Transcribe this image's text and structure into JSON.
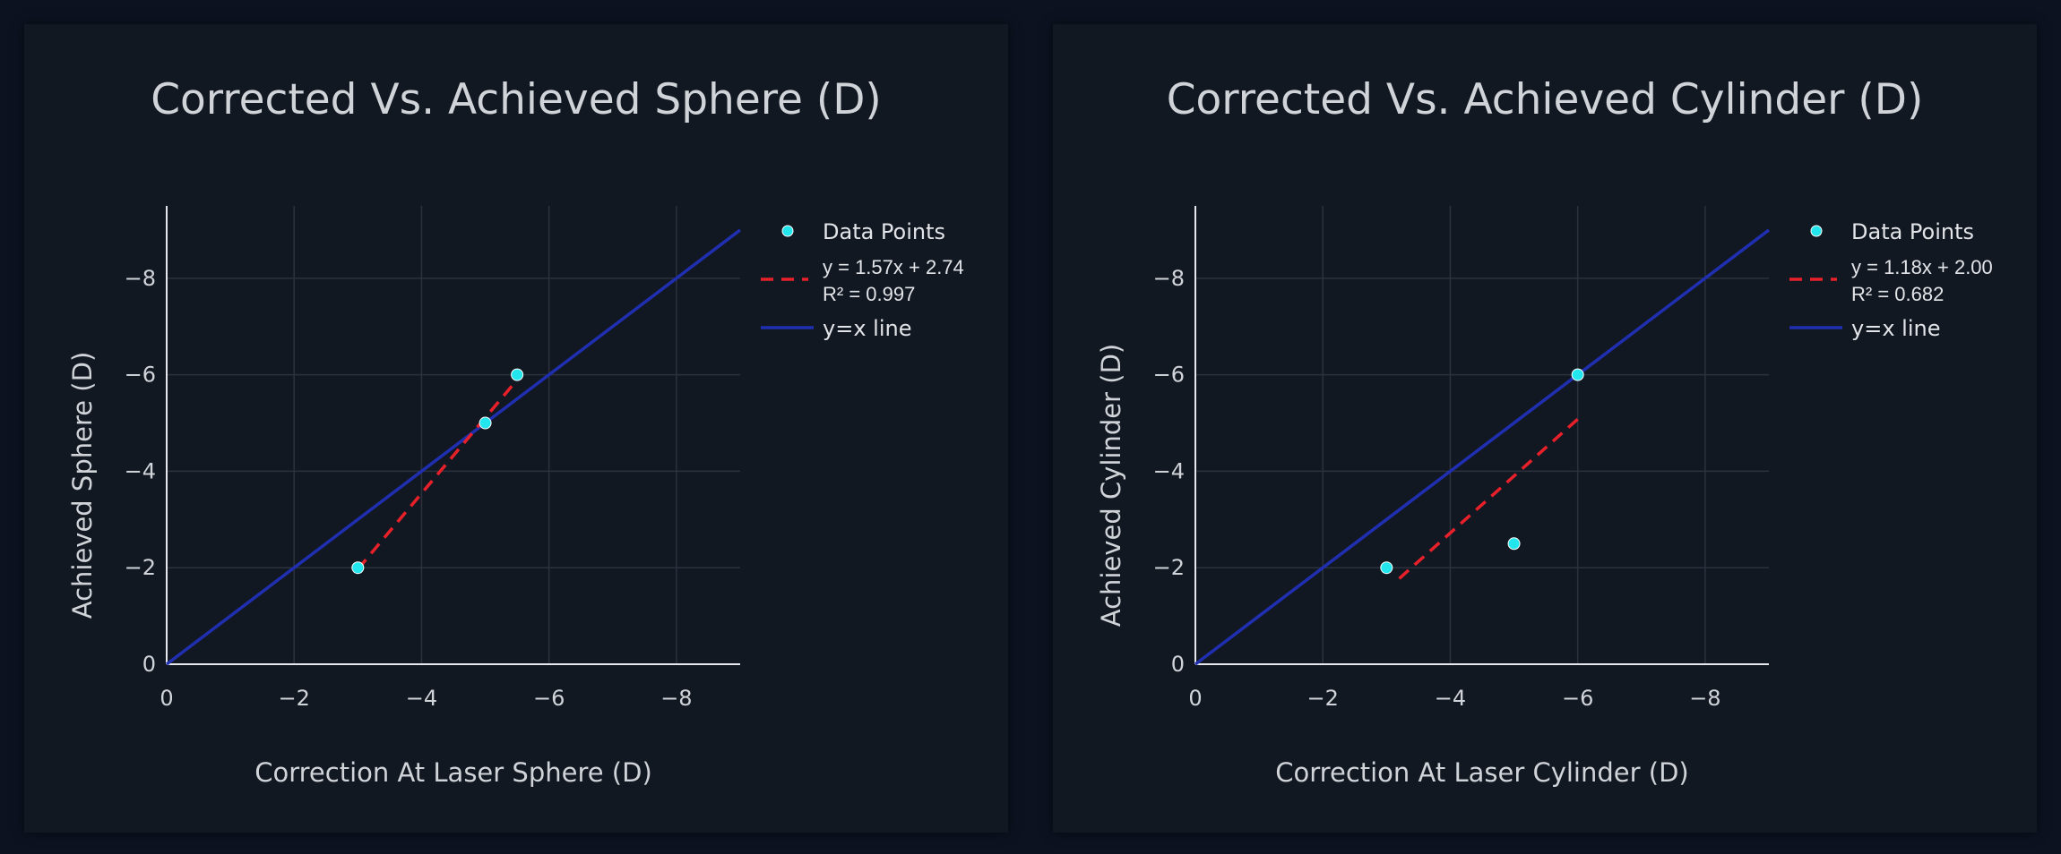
{
  "chart_data": [
    {
      "type": "scatter",
      "title": "Corrected Vs. Achieved Sphere (D)",
      "xlabel": "Correction At Laser Sphere (D)",
      "ylabel": "Achieved Sphere (D)",
      "xlim": [
        0,
        -9
      ],
      "ylim": [
        0,
        -9.5
      ],
      "x_ticks": [
        0,
        -2,
        -4,
        -6,
        -8
      ],
      "x_tick_labels": [
        "0",
        "−2",
        "−4",
        "−6",
        "−8"
      ],
      "y_ticks": [
        0,
        -2,
        -4,
        -6,
        -8
      ],
      "y_tick_labels": [
        "0",
        "−2",
        "−4",
        "−6",
        "−8"
      ],
      "grid": true,
      "legend_position": "right",
      "series": [
        {
          "name": "Data Points",
          "kind": "markers",
          "color": "#22e5ee",
          "points": [
            [
              -3,
              -2
            ],
            [
              -5,
              -5
            ],
            [
              -5.5,
              -6
            ]
          ]
        },
        {
          "name": "y = 1.57x + 2.74",
          "name_line2": "R² = 0.997",
          "kind": "dash-line",
          "color": "#e8202a",
          "x_range": [
            -3,
            -5.5
          ],
          "slope": 1.57,
          "intercept": 2.74
        },
        {
          "name": "y=x line",
          "kind": "line",
          "color": "#1f2fb0",
          "x_range": [
            0,
            -9
          ]
        }
      ]
    },
    {
      "type": "scatter",
      "title": "Corrected Vs. Achieved Cylinder (D)",
      "xlabel": "Correction At Laser Cylinder (D)",
      "ylabel": "Achieved Cylinder (D)",
      "xlim": [
        0,
        -9
      ],
      "ylim": [
        0,
        -9.5
      ],
      "x_ticks": [
        0,
        -2,
        -4,
        -6,
        -8
      ],
      "x_tick_labels": [
        "0",
        "−2",
        "−4",
        "−6",
        "−8"
      ],
      "y_ticks": [
        0,
        -2,
        -4,
        -6,
        -8
      ],
      "y_tick_labels": [
        "0",
        "−2",
        "−4",
        "−6",
        "−8"
      ],
      "grid": true,
      "legend_position": "right",
      "series": [
        {
          "name": "Data Points",
          "kind": "markers",
          "color": "#22e5ee",
          "points": [
            [
              -3,
              -2
            ],
            [
              -5,
              -2.5
            ],
            [
              -6,
              -6
            ]
          ]
        },
        {
          "name": "y = 1.18x + 2.00",
          "name_line2": "R² = 0.682",
          "kind": "dash-line",
          "color": "#e8202a",
          "x_range": [
            -3.2,
            -6
          ],
          "slope": 1.18,
          "intercept": 2.0
        },
        {
          "name": "y=x line",
          "kind": "line",
          "color": "#1f2fb0",
          "x_range": [
            0,
            -9
          ]
        }
      ]
    }
  ]
}
